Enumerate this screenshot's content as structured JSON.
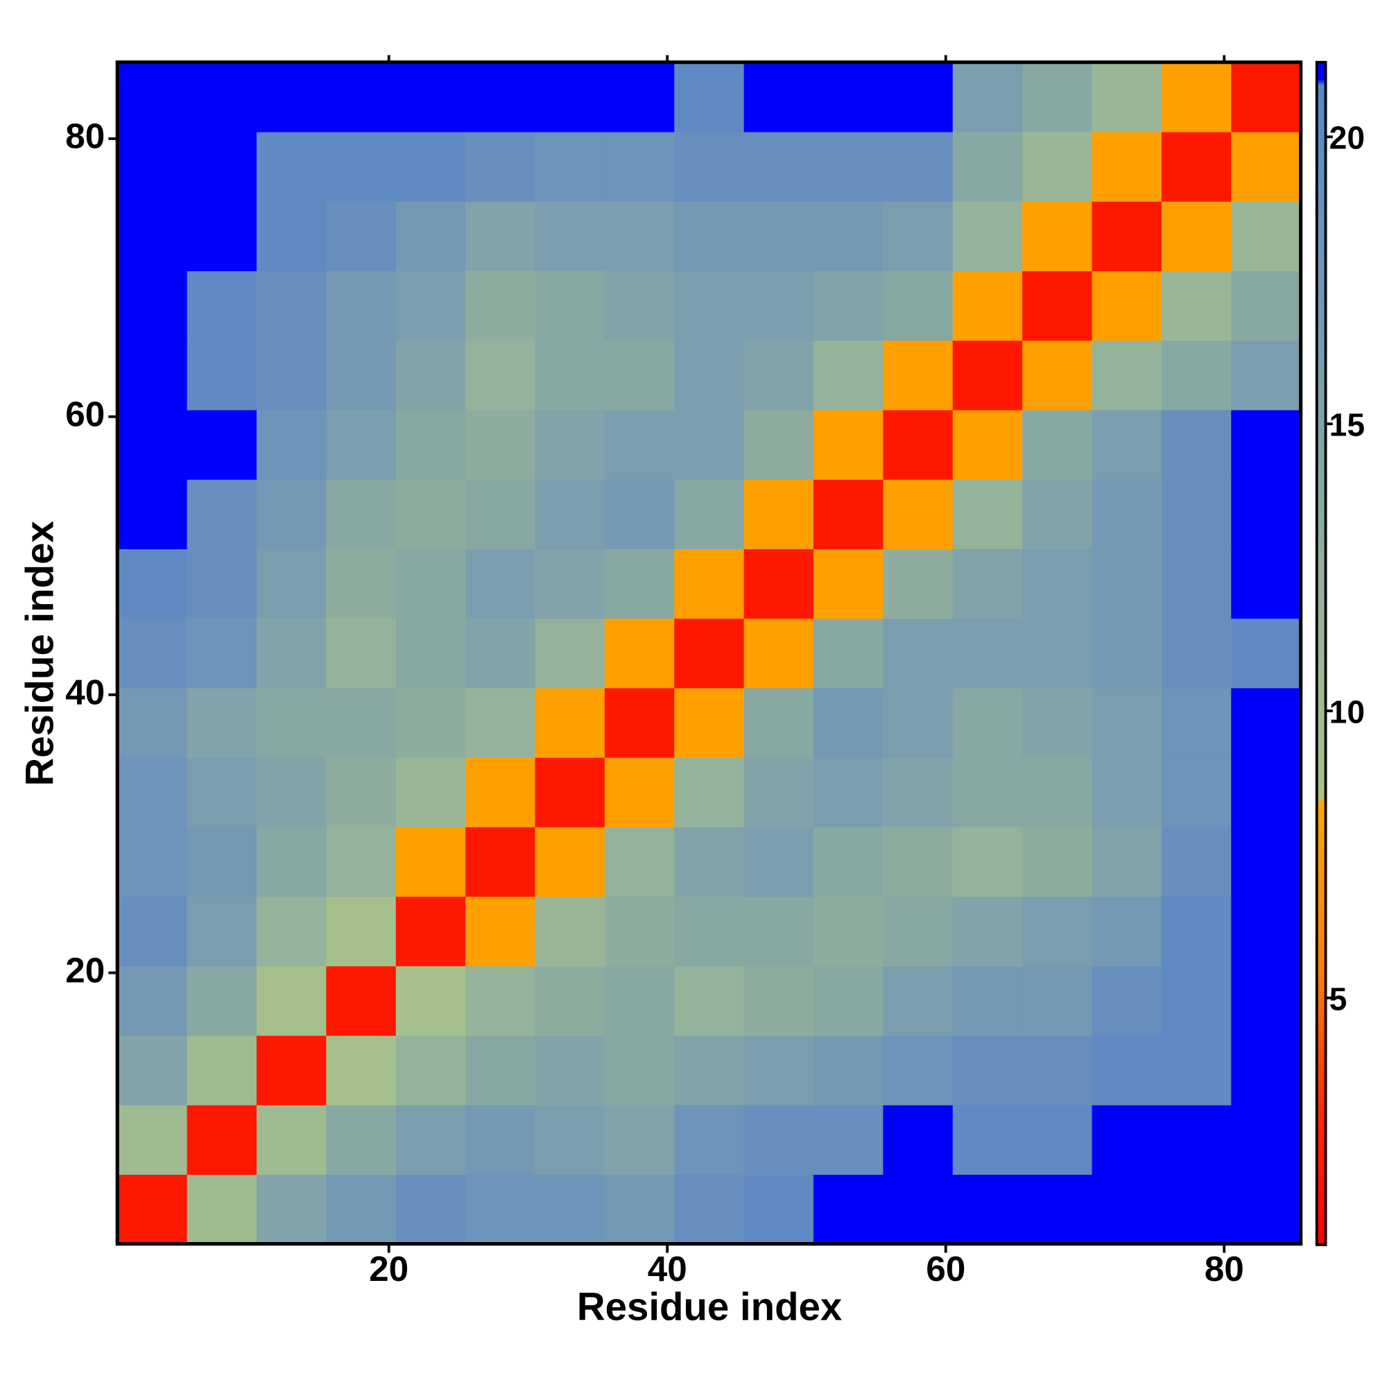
{
  "chart_data": {
    "type": "heatmap",
    "x_label": "Residue index",
    "y_label": "Residue index",
    "x": [
      3,
      8,
      13,
      18,
      23,
      28,
      33,
      38,
      43,
      48,
      53,
      58,
      63,
      68,
      73,
      78,
      83
    ],
    "y": [
      3,
      8,
      13,
      18,
      23,
      28,
      33,
      38,
      43,
      48,
      53,
      58,
      63,
      68,
      73,
      78,
      83
    ],
    "z": [
      [
        2,
        10,
        15,
        17,
        19,
        18,
        18,
        17,
        19,
        20,
        21,
        21,
        21,
        21,
        21,
        21,
        21
      ],
      [
        10,
        2,
        10,
        14,
        16,
        17,
        16,
        15,
        18,
        19,
        19,
        21,
        20,
        20,
        21,
        21,
        21
      ],
      [
        15,
        10,
        2,
        9,
        12,
        14,
        15,
        14,
        15,
        16,
        17,
        18,
        19,
        19,
        20,
        20,
        21
      ],
      [
        17,
        14,
        9,
        2,
        9,
        12,
        13,
        14,
        12,
        13,
        14,
        16,
        17,
        17,
        19,
        20,
        21
      ],
      [
        19,
        16,
        12,
        9,
        2,
        8,
        11,
        13,
        14,
        14,
        13,
        14,
        15,
        16,
        17,
        20,
        21
      ],
      [
        18,
        17,
        14,
        12,
        8,
        2,
        8,
        12,
        15,
        16,
        14,
        13,
        12,
        13,
        15,
        19,
        21
      ],
      [
        18,
        16,
        15,
        13,
        11,
        8,
        2,
        8,
        12,
        15,
        16,
        15,
        14,
        14,
        16,
        18,
        21
      ],
      [
        17,
        15,
        14,
        14,
        13,
        12,
        8,
        2,
        8,
        14,
        17,
        16,
        14,
        15,
        16,
        18,
        21
      ],
      [
        19,
        18,
        15,
        12,
        14,
        15,
        12,
        8,
        2,
        8,
        14,
        16,
        16,
        16,
        17,
        19,
        20
      ],
      [
        20,
        19,
        16,
        13,
        14,
        16,
        15,
        14,
        8,
        2,
        8,
        13,
        15,
        16,
        17,
        19,
        21
      ],
      [
        21,
        19,
        17,
        14,
        13,
        14,
        16,
        17,
        14,
        8,
        2,
        8,
        12,
        15,
        17,
        19,
        21
      ],
      [
        21,
        21,
        18,
        16,
        14,
        13,
        15,
        16,
        16,
        13,
        8,
        2,
        8,
        14,
        16,
        19,
        21
      ],
      [
        21,
        20,
        19,
        17,
        15,
        12,
        14,
        14,
        16,
        15,
        12,
        8,
        2,
        8,
        12,
        14,
        16
      ],
      [
        21,
        20,
        19,
        17,
        16,
        13,
        14,
        15,
        16,
        16,
        15,
        14,
        8,
        2,
        8,
        11,
        14
      ],
      [
        21,
        21,
        20,
        19,
        17,
        15,
        16,
        16,
        17,
        17,
        17,
        16,
        12,
        8,
        2,
        8,
        11
      ],
      [
        21,
        21,
        20,
        20,
        20,
        19,
        18,
        18,
        19,
        19,
        19,
        19,
        14,
        11,
        8,
        2,
        8
      ],
      [
        21,
        21,
        21,
        21,
        21,
        21,
        21,
        21,
        20,
        21,
        21,
        21,
        16,
        14,
        11,
        8,
        2
      ]
    ],
    "xlim": [
      0.5,
      85.5
    ],
    "ylim": [
      0.5,
      85.5
    ],
    "xticks": [
      20,
      40,
      60,
      80
    ],
    "yticks": [
      20,
      40,
      60,
      80
    ],
    "colorbar": {
      "lim": [
        0.7,
        21.3
      ],
      "ticks": [
        5,
        10,
        15,
        20
      ],
      "colorscale": [
        [
          0.7,
          "#ff0000"
        ],
        [
          3,
          "#ff2a00"
        ],
        [
          5.5,
          "#ff8000"
        ],
        [
          8.4,
          "#ffa500"
        ],
        [
          8.5,
          "#a9c28b"
        ],
        [
          13,
          "#8fad9f"
        ],
        [
          20.9,
          "#5a86c8"
        ],
        [
          21,
          "#0000ff"
        ],
        [
          21.3,
          "#0000ff"
        ]
      ]
    }
  }
}
